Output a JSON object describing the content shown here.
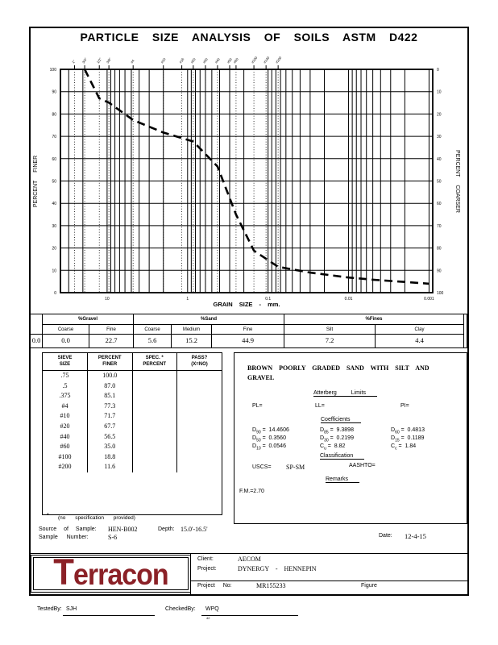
{
  "page": {
    "title": "PARTICLE SIZE ANALYSIS OF SOILS ASTM D422"
  },
  "chart_data": {
    "type": "line",
    "x_scale": "log",
    "title": "",
    "xlabel": "GRAIN SIZE - mm.",
    "ylabel_left": "PERCENT FINER",
    "ylabel_right": "PERCENT COARSER",
    "x_range_mm": [
      38,
      0.0009
    ],
    "ylim": [
      0,
      100
    ],
    "grid": true,
    "x_ticks": [
      10,
      1,
      0.1,
      0.01,
      0.001
    ],
    "x_tick_labels": [
      "10",
      "1",
      "0.1",
      "0.01",
      "0.001"
    ],
    "y_ticks_left": [
      100,
      90,
      80,
      70,
      60,
      50,
      40,
      30,
      20,
      10,
      0
    ],
    "y_ticks_right": [
      0,
      10,
      20,
      30,
      40,
      50,
      60,
      70,
      80,
      90,
      100
    ],
    "line_style": "dashed",
    "series": [
      {
        "name": "grain-size-distribution",
        "points": [
          [
            19,
            100.0
          ],
          [
            12.5,
            87.0
          ],
          [
            9.5,
            85.1
          ],
          [
            4.75,
            77.3
          ],
          [
            2.0,
            71.7
          ],
          [
            0.85,
            67.7
          ],
          [
            0.425,
            56.5
          ],
          [
            0.25,
            35.0
          ],
          [
            0.15,
            18.8
          ],
          [
            0.075,
            11.6
          ],
          [
            0.03,
            9.0
          ],
          [
            0.01,
            6.8
          ],
          [
            0.005,
            5.8
          ],
          [
            0.002,
            4.8
          ],
          [
            0.001,
            4.0
          ]
        ]
      }
    ],
    "sieve_marks": [
      {
        "label": "1\"",
        "mm": 25.4
      },
      {
        "label": "3/4\"",
        "mm": 19
      },
      {
        "label": "1/2\"",
        "mm": 12.5
      },
      {
        "label": "3/8\"",
        "mm": 9.5
      },
      {
        "label": "#4",
        "mm": 4.75
      },
      {
        "label": "#10",
        "mm": 2
      },
      {
        "label": "#16",
        "mm": 1.18
      },
      {
        "label": "#20",
        "mm": 0.85
      },
      {
        "label": "#30",
        "mm": 0.6
      },
      {
        "label": "#40",
        "mm": 0.425
      },
      {
        "label": "#50",
        "mm": 0.3
      },
      {
        "label": "#60",
        "mm": 0.25
      },
      {
        "label": "#100",
        "mm": 0.15
      },
      {
        "label": "#140",
        "mm": 0.106
      },
      {
        "label": "#200",
        "mm": 0.075
      }
    ]
  },
  "fractions_table": {
    "groups": [
      {
        "label": "%Gravel",
        "cols": [
          "Coarse",
          "Fine"
        ]
      },
      {
        "label": "%Sand",
        "cols": [
          "Coarse",
          "Medium",
          "Fine"
        ]
      },
      {
        "label": "%Fines",
        "cols": [
          "Silt",
          "Clay"
        ]
      }
    ],
    "leading_value": "0.0",
    "values": [
      "0.0",
      "22.7",
      "5.6",
      "15.2",
      "44.9",
      "7.2",
      "4.4"
    ]
  },
  "sieve_table": {
    "headers": [
      [
        "SIEVE",
        "SIZE"
      ],
      [
        "PERCENT",
        "FINER"
      ],
      [
        "SPEC.    *",
        "PERCENT"
      ],
      [
        "PASS?",
        "(X=NO)"
      ]
    ],
    "rows": [
      [
        ".75",
        "100.0"
      ],
      [
        ".5",
        "87.0"
      ],
      [
        ".375",
        "85.1"
      ],
      [
        "#4",
        "77.3"
      ],
      [
        "#10",
        "71.7"
      ],
      [
        "#20",
        "67.7"
      ],
      [
        "#40",
        "56.5"
      ],
      [
        "#60",
        "35.0"
      ],
      [
        "#100",
        "18.8"
      ],
      [
        "#200",
        "11.6"
      ]
    ],
    "footnote_star": "*",
    "footnote": "(no specification provided)"
  },
  "description": {
    "line1": "BROWN POORLY GRADED SAND WITH SILT AND",
    "line2": "GRAVEL"
  },
  "atterberg": {
    "heading": "Atterberg Limits",
    "pl": "PL=",
    "ll": "LL=",
    "pi": "PI="
  },
  "coefficients": {
    "heading": "Coefficients",
    "grid": [
      [
        {
          "p": "D",
          "s": "90",
          "v": "14.4606"
        },
        {
          "p": "D",
          "s": "85",
          "v": "9.3898"
        },
        {
          "p": "D",
          "s": "60",
          "v": "0.4813"
        }
      ],
      [
        {
          "p": "D",
          "s": "50",
          "v": "0.3560"
        },
        {
          "p": "D",
          "s": "30",
          "v": "0.2199"
        },
        {
          "p": "D",
          "s": "15",
          "v": "0.1189"
        }
      ],
      [
        {
          "p": "D",
          "s": "10",
          "v": "0.0546"
        },
        {
          "p": "C",
          "s": "u",
          "v": "8.82"
        },
        {
          "p": "C",
          "s": "c",
          "v": "1.84"
        }
      ]
    ]
  },
  "classification": {
    "heading": "Classification",
    "uscs_label": "USCS=",
    "uscs_value": "SP-SM",
    "aashto_label": "AASHTO="
  },
  "remarks": {
    "heading": "Remarks",
    "fm": "F.M.=2.70"
  },
  "sample_info": {
    "source_label": "Source of Sample:",
    "source_value": "HEN-B002",
    "depth_label": "Depth:",
    "depth_value": "15.0'-16.5'",
    "number_label": "Sample Number:",
    "number_value": "S-6",
    "date_label": "Date:",
    "date_value": "12-4-15"
  },
  "footer_box": {
    "logo_text": "Terracon",
    "client_label": "Client:",
    "client_value": "AECOM",
    "project_label": "Project:",
    "project_value": "DYNERGY - HENNEPIN",
    "project_no_label": "Project No:",
    "project_no_value": "MR155233",
    "figure_label": "Figure"
  },
  "signatures": {
    "tested_label": "TestedBy:",
    "tested_value": "SJH",
    "checked_label": "CheckedBy:",
    "checked_value": "WPQ",
    "checked_note": "42"
  },
  "colors": {
    "logo_red": "#8b2127",
    "ink": "#000000"
  }
}
